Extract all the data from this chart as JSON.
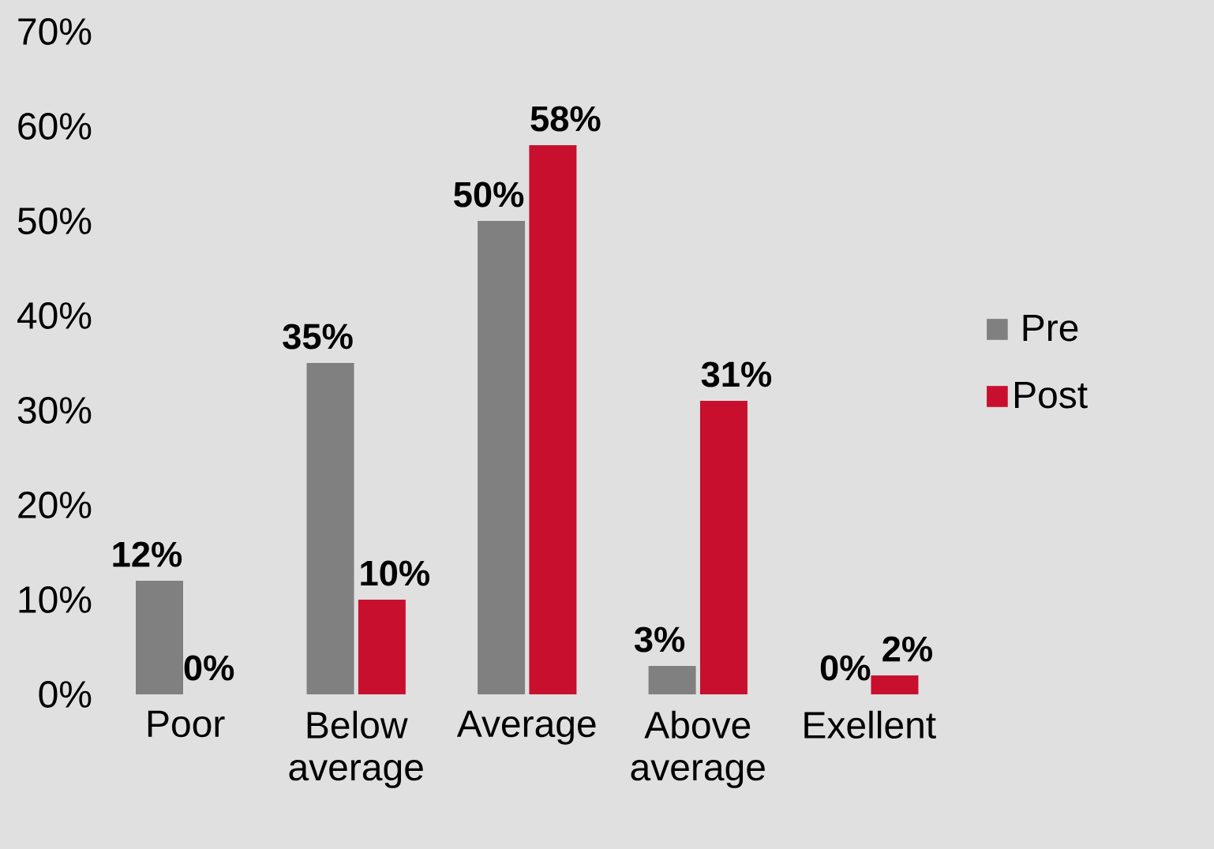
{
  "chart_data": {
    "type": "bar",
    "categories": [
      "Poor",
      "Below average",
      "Average",
      "Above average",
      "Exellent"
    ],
    "series": [
      {
        "name": "Pre",
        "color": "#808080",
        "values": [
          12,
          35,
          50,
          3,
          0
        ],
        "value_labels": [
          "12%",
          "35%",
          "50%",
          "3%",
          "0%"
        ]
      },
      {
        "name": "Post",
        "color": "#c8102e",
        "values": [
          0,
          10,
          58,
          31,
          2
        ],
        "value_labels": [
          "0%",
          "10%",
          "58%",
          "31%",
          "2%"
        ]
      }
    ],
    "ylim": [
      0,
      70
    ],
    "yticks": [
      {
        "value": 0,
        "label": "0%"
      },
      {
        "value": 10,
        "label": "10%"
      },
      {
        "value": 20,
        "label": "20%"
      },
      {
        "value": 30,
        "label": "30%"
      },
      {
        "value": 40,
        "label": "40%"
      },
      {
        "value": 50,
        "label": "50%"
      },
      {
        "value": 60,
        "label": "60%"
      },
      {
        "value": 70,
        "label": "70%"
      }
    ],
    "grid": false,
    "legend": "right"
  }
}
